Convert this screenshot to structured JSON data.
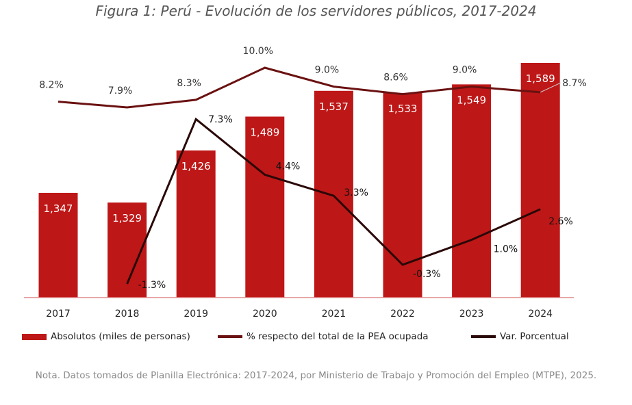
{
  "chart_data": {
    "type": "bar+line",
    "title": "Figura 1: Perú - Evolución de los servidores públicos, 2017-2024",
    "categories": [
      "2017",
      "2018",
      "2019",
      "2020",
      "2021",
      "2022",
      "2023",
      "2024"
    ],
    "series": [
      {
        "name": "Absolutos (miles de personas)",
        "type": "bar",
        "color": "#be1717",
        "values": [
          1347,
          1329,
          1426,
          1489,
          1537,
          1533,
          1549,
          1589
        ],
        "labels": [
          "1,347",
          "1,329",
          "1,426",
          "1,489",
          "1,537",
          "1,533",
          "1,549",
          "1,589"
        ]
      },
      {
        "name": "% respecto del total de la PEA ocupada",
        "type": "line",
        "color": "#6b1111",
        "values": [
          8.2,
          7.9,
          8.3,
          10.0,
          9.0,
          8.6,
          9.0,
          8.7
        ],
        "labels": [
          "8.2%",
          "7.9%",
          "8.3%",
          "10.0%",
          "9.0%",
          "8.6%",
          "9.0%",
          "8.7%"
        ]
      },
      {
        "name": "Var. Porcentual",
        "type": "line",
        "color": "#2a0808",
        "values": [
          null,
          -1.3,
          7.3,
          4.4,
          3.3,
          -0.3,
          1.0,
          2.6
        ],
        "labels": [
          "",
          "-1.3%",
          "7.3%",
          "4.4%",
          "3.3%",
          "-0.3%",
          "1.0%",
          "2.6%"
        ]
      }
    ],
    "legend_position": "bottom",
    "grid": false
  },
  "note": "Nota. Datos tomados de Planilla Electrónica: 2017-2024, por Ministerio de Trabajo y Promoción del Empleo (MTPE), 2025."
}
